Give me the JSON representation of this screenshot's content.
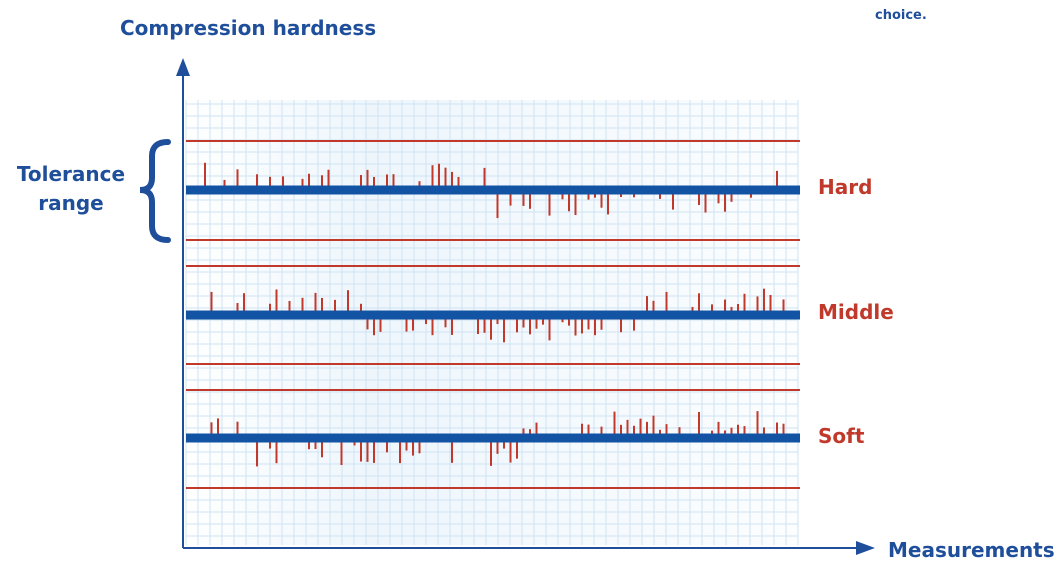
{
  "y_axis_label": "Compression hardness",
  "x_axis_label": "Measurements",
  "top_note": "choice.",
  "tolerance_label": "Tolerance range",
  "bands": [
    {
      "name": "Hard"
    },
    {
      "name": "Middle"
    },
    {
      "name": "Soft"
    }
  ],
  "colors": {
    "axis_blue": "#1f4f9b",
    "center_line": "#1253a3",
    "limit_line": "#c0392b",
    "bar": "#c0392b",
    "grid": "#cfe3f3"
  }
}
